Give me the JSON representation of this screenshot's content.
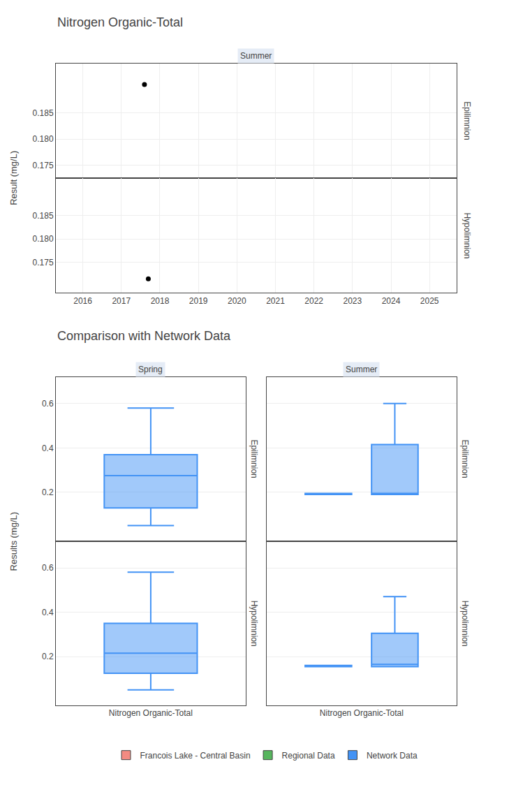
{
  "chart_data": [
    {
      "type": "scatter",
      "title": "Nitrogen Organic-Total",
      "ylabel": "Result (mg/L)",
      "color": "#000000",
      "grid": true,
      "panels": [
        {
          "row": "Epilimnion",
          "column": "Summer",
          "x": [
            2017.6
          ],
          "values": [
            0.1905
          ],
          "xlim": [
            2015.3,
            2025.7
          ],
          "xticks": [
            2016,
            2017,
            2018,
            2019,
            2020,
            2021,
            2022,
            2023,
            2024,
            2025
          ],
          "ylim": [
            0.1725,
            0.1945
          ],
          "yticks": [
            0.175,
            {
              "value": 0.18,
              "label": "0.180"
            },
            0.185
          ],
          "tick_labels": "y"
        },
        {
          "row": "Hypolimnion",
          "x": [
            2017.7
          ],
          "values": [
            0.1715
          ],
          "xlim": [
            2015.3,
            2025.7
          ],
          "xticks": [
            2016,
            2017,
            2018,
            2019,
            2020,
            2021,
            2022,
            2023,
            2024,
            2025
          ],
          "ylim": [
            0.1685,
            0.193
          ],
          "yticks": [
            0.175,
            {
              "value": 0.18,
              "label": "0.180"
            },
            0.185
          ]
        }
      ]
    },
    {
      "type": "box",
      "title": "Comparison with Network Data",
      "ylabel": "Results (mg/L)",
      "categories": [
        "Nitrogen Organic-Total"
      ],
      "grid": "y",
      "legend": "bottom",
      "series": [
        {
          "name": "Francois Lake - Central Basin",
          "color": "#F28B82"
        },
        {
          "name": "Regional Data",
          "color": "#57B55E"
        },
        {
          "name": "Network Data",
          "color": "#4393F5"
        }
      ],
      "panels": [
        {
          "row": "Epilimnion",
          "column": "Spring",
          "ylim": [
            -0.02,
            0.72
          ],
          "yticks": [
            0.2,
            0.4,
            0.6
          ],
          "tick_labels": "y",
          "boxes": [
            {
              "color": "#4393F5",
              "whislo": [
                0.05
              ],
              "q1": [
                0.13
              ],
              "med": [
                0.275
              ],
              "q3": [
                0.37
              ],
              "whishi": [
                0.58
              ]
            }
          ]
        },
        {
          "row": "Epilimnion",
          "column": "Summer",
          "ylim": [
            -0.02,
            0.72
          ],
          "yticks": [
            0.2,
            0.4,
            0.6
          ],
          "tick_labels": false,
          "boxes": [
            {
              "color": "#4393F5",
              "whislo": [
                0.19
              ],
              "q1": [
                0.19
              ],
              "med": [
                0.195
              ],
              "q3": [
                0.195
              ],
              "whishi": [
                0.195
              ]
            },
            {
              "color": "#4393F5",
              "whislo": [
                0.19
              ],
              "q1": [
                0.19
              ],
              "med": [
                0.195
              ],
              "q3": [
                0.415
              ],
              "whishi": [
                0.6
              ]
            }
          ]
        },
        {
          "row": "Hypolimnion",
          "ylim": [
            -0.02,
            0.72
          ],
          "yticks": [
            0.2,
            0.4,
            0.6
          ],
          "boxes": [
            {
              "color": "#4393F5",
              "whislo": [
                0.05
              ],
              "q1": [
                0.125
              ],
              "med": [
                0.215
              ],
              "q3": [
                0.35
              ],
              "whishi": [
                0.58
              ]
            }
          ]
        },
        {
          "row": "Hypolimnion",
          "ylim": [
            -0.02,
            0.72
          ],
          "yticks": [
            0.2,
            0.4,
            0.6
          ],
          "tick_labels": "x",
          "boxes": [
            {
              "color": "#4393F5",
              "whislo": [
                0.155
              ],
              "q1": [
                0.155
              ],
              "med": [
                0.16
              ],
              "q3": [
                0.16
              ],
              "whishi": [
                0.16
              ]
            },
            {
              "color": "#4393F5",
              "whislo": [
                0.155
              ],
              "q1": [
                0.155
              ],
              "med": [
                0.165
              ],
              "q3": [
                0.305
              ],
              "whishi": [
                0.47
              ]
            }
          ]
        }
      ]
    }
  ]
}
